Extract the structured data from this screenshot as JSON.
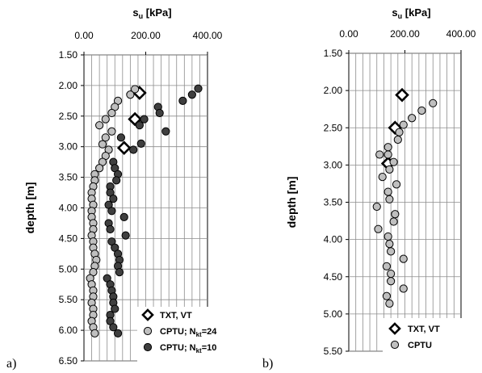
{
  "colors": {
    "txt_vt_fill": "#ffffff",
    "txt_vt_stroke": "#000000",
    "cptu24_fill": "#bfbfbf",
    "cptu10_fill": "#3f3f3f",
    "grid": "#8c8c8c"
  },
  "chart_data": [
    {
      "type": "scatter",
      "panel_letter": "a)",
      "xlabel_main": "s",
      "xlabel_sub": "u",
      "xlabel_tail": " [kPa]",
      "ylabel": "depth [m]",
      "xlim": [
        0,
        400
      ],
      "ylim": [
        1.5,
        6.5
      ],
      "y_inverted": true,
      "x_axis_position": "top",
      "x_ticks": [
        "0.00",
        "200.00",
        "400.00"
      ],
      "y_ticks": [
        "1.50",
        "2.00",
        "2.50",
        "3.00",
        "3.50",
        "4.00",
        "4.50",
        "5.00",
        "5.50",
        "6.00",
        "6.50"
      ],
      "grid": "vertical-and-horizontal",
      "legend_position": "bottom-right",
      "series": [
        {
          "name": "TXT, VT",
          "legend_parts": [
            "TXT, VT"
          ],
          "marker": "diamond",
          "points": [
            [
              180,
              2.12
            ],
            [
              165,
              2.55
            ],
            [
              130,
              3.02
            ]
          ]
        },
        {
          "name": "CPTU; Nkt=24",
          "legend_parts": [
            "CPTU; N",
            "kt",
            "=24"
          ],
          "marker": "circle",
          "points": [
            [
              165,
              2.06
            ],
            [
              150,
              2.15
            ],
            [
              110,
              2.25
            ],
            [
              100,
              2.35
            ],
            [
              90,
              2.45
            ],
            [
              70,
              2.55
            ],
            [
              50,
              2.65
            ],
            [
              90,
              2.75
            ],
            [
              70,
              2.85
            ],
            [
              60,
              2.96
            ],
            [
              80,
              3.05
            ],
            [
              70,
              3.15
            ],
            [
              60,
              3.25
            ],
            [
              50,
              3.35
            ],
            [
              35,
              3.45
            ],
            [
              35,
              3.55
            ],
            [
              30,
              3.65
            ],
            [
              25,
              3.75
            ],
            [
              25,
              3.85
            ],
            [
              30,
              3.95
            ],
            [
              25,
              4.05
            ],
            [
              25,
              4.15
            ],
            [
              30,
              4.25
            ],
            [
              30,
              4.35
            ],
            [
              25,
              4.45
            ],
            [
              30,
              4.55
            ],
            [
              30,
              4.65
            ],
            [
              35,
              4.75
            ],
            [
              40,
              4.85
            ],
            [
              35,
              4.95
            ],
            [
              30,
              5.05
            ],
            [
              20,
              5.15
            ],
            [
              25,
              5.25
            ],
            [
              30,
              5.35
            ],
            [
              30,
              5.45
            ],
            [
              25,
              5.55
            ],
            [
              30,
              5.65
            ],
            [
              30,
              5.75
            ],
            [
              25,
              5.85
            ],
            [
              30,
              5.95
            ],
            [
              35,
              6.05
            ]
          ]
        },
        {
          "name": "CPTU; Nkt=10",
          "legend_parts": [
            "CPTU; N",
            "kt",
            "=10"
          ],
          "marker": "circle",
          "points": [
            [
              370,
              2.05
            ],
            [
              350,
              2.15
            ],
            [
              320,
              2.25
            ],
            [
              240,
              2.35
            ],
            [
              245,
              2.45
            ],
            [
              195,
              2.55
            ],
            [
              180,
              2.65
            ],
            [
              265,
              2.75
            ],
            [
              120,
              2.85
            ],
            [
              185,
              2.95
            ],
            [
              160,
              3.05
            ],
            [
              95,
              3.25
            ],
            [
              100,
              3.35
            ],
            [
              110,
              3.45
            ],
            [
              105,
              3.55
            ],
            [
              85,
              3.65
            ],
            [
              85,
              3.75
            ],
            [
              95,
              3.85
            ],
            [
              80,
              3.95
            ],
            [
              90,
              4.05
            ],
            [
              130,
              4.15
            ],
            [
              80,
              4.25
            ],
            [
              85,
              4.35
            ],
            [
              135,
              4.45
            ],
            [
              90,
              4.55
            ],
            [
              100,
              4.65
            ],
            [
              110,
              4.75
            ],
            [
              115,
              4.85
            ],
            [
              110,
              4.95
            ],
            [
              115,
              5.05
            ],
            [
              75,
              5.15
            ],
            [
              85,
              5.25
            ],
            [
              90,
              5.35
            ],
            [
              95,
              5.45
            ],
            [
              95,
              5.55
            ],
            [
              100,
              5.65
            ],
            [
              85,
              5.75
            ],
            [
              85,
              5.85
            ],
            [
              95,
              5.95
            ],
            [
              110,
              6.05
            ]
          ]
        }
      ]
    },
    {
      "type": "scatter",
      "panel_letter": "b)",
      "xlabel_main": "s",
      "xlabel_sub": "u",
      "xlabel_tail": " [kPa]",
      "ylabel": "depth [m]",
      "xlim": [
        0,
        400
      ],
      "ylim": [
        1.5,
        5.5
      ],
      "y_inverted": true,
      "x_axis_position": "top",
      "x_ticks": [
        "0.00",
        "200.00",
        "400.00"
      ],
      "y_ticks": [
        "1.50",
        "2.00",
        "2.50",
        "3.00",
        "3.50",
        "4.00",
        "4.50",
        "5.00",
        "5.50"
      ],
      "grid": "vertical-and-horizontal",
      "legend_position": "bottom-right",
      "series": [
        {
          "name": "TXT, VT",
          "legend_parts": [
            "TXT, VT"
          ],
          "marker": "diamond",
          "points": [
            [
              190,
              2.06
            ],
            [
              165,
              2.5
            ],
            [
              140,
              2.98
            ]
          ]
        },
        {
          "name": "CPTU",
          "legend_parts": [
            "CPTU"
          ],
          "marker": "circle",
          "points": [
            [
              300,
              2.17
            ],
            [
              260,
              2.27
            ],
            [
              225,
              2.37
            ],
            [
              195,
              2.46
            ],
            [
              180,
              2.56
            ],
            [
              175,
              2.66
            ],
            [
              140,
              2.76
            ],
            [
              110,
              2.86
            ],
            [
              140,
              2.86
            ],
            [
              160,
              2.96
            ],
            [
              145,
              3.06
            ],
            [
              120,
              3.16
            ],
            [
              170,
              3.26
            ],
            [
              140,
              3.36
            ],
            [
              145,
              3.46
            ],
            [
              100,
              3.56
            ],
            [
              165,
              3.66
            ],
            [
              160,
              3.76
            ],
            [
              105,
              3.86
            ],
            [
              140,
              3.96
            ],
            [
              145,
              4.06
            ],
            [
              150,
              4.16
            ],
            [
              195,
              4.26
            ],
            [
              135,
              4.36
            ],
            [
              150,
              4.46
            ],
            [
              150,
              4.56
            ],
            [
              195,
              4.66
            ],
            [
              135,
              4.76
            ],
            [
              145,
              4.86
            ]
          ]
        }
      ]
    }
  ]
}
